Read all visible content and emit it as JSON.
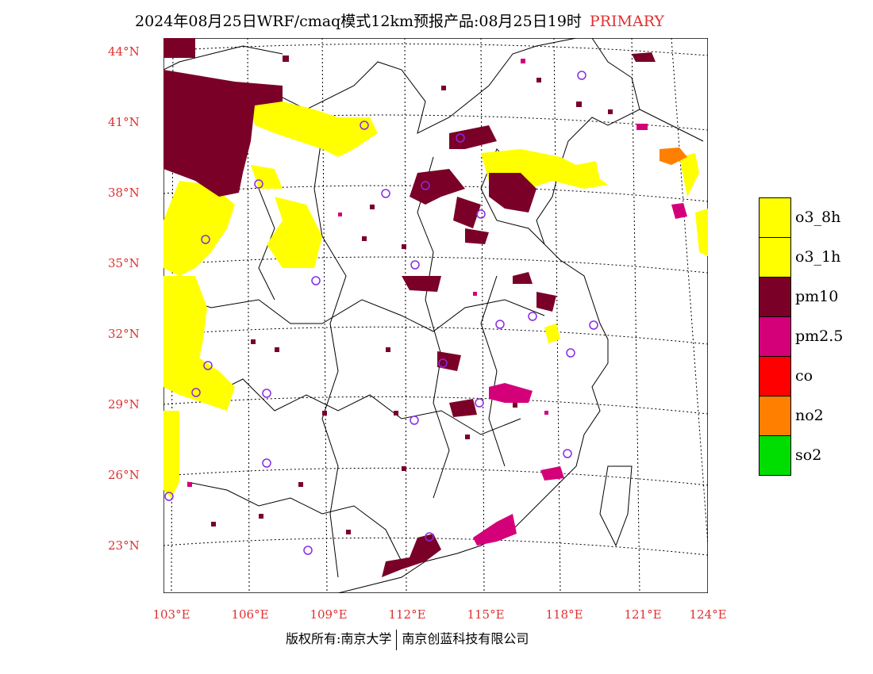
{
  "title": "2024年08月25日WRF/cmaq模式12km预报产品:08月25日19时",
  "primary": "PRIMARY",
  "lat_labels": [
    "44°N",
    "41°N",
    "38°N",
    "35°N",
    "32°N",
    "29°N",
    "26°N",
    "23°N"
  ],
  "lon_labels": [
    "103°E",
    "106°E",
    "109°E",
    "112°E",
    "115°E",
    "118°E",
    "121°E",
    "124°E"
  ],
  "legend": [
    {
      "label": "o3_8h",
      "color": "#ffff00"
    },
    {
      "label": "o3_1h",
      "color": "#ffff00"
    },
    {
      "label": "pm10",
      "color": "#7a0028"
    },
    {
      "label": "pm2.5",
      "color": "#d4007a"
    },
    {
      "label": "co",
      "color": "#ff0000"
    },
    {
      "label": "no2",
      "color": "#ff8000"
    },
    {
      "label": "so2",
      "color": "#00dd00"
    }
  ],
  "copyright": {
    "left": "版权所有:南京大学",
    "right": "南京创蓝科技有限公司"
  },
  "colors": {
    "o3": "#ffff00",
    "pm10": "#7a0028",
    "pm25": "#d4007a",
    "no2": "#ff8000",
    "station": "#8a2be2",
    "label": "#e03030"
  }
}
